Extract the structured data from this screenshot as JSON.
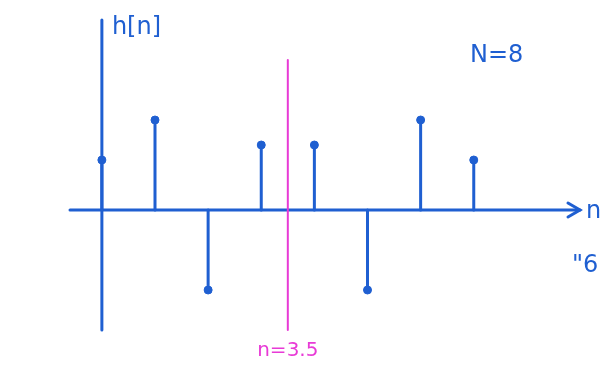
{
  "chart_data": {
    "type": "stem",
    "y_label": "h[n]",
    "x_label": "n",
    "x": [
      0,
      1,
      2,
      3,
      4,
      5,
      6,
      7
    ],
    "values": [
      0.5,
      0.9,
      -0.8,
      0.65,
      0.65,
      -0.8,
      0.9,
      0.5
    ],
    "color": "#1f5fd1",
    "marker": "circle",
    "xlim": [
      -0.6,
      9
    ],
    "ylim": [
      -1.2,
      1.9
    ],
    "xticks": [],
    "yticks": [],
    "tick_labels": false,
    "grid": false,
    "annotations": [
      {
        "text": "N=8"
      },
      {
        "text": "\"6"
      }
    ],
    "vline": {
      "x": 3.5,
      "label": "n=3.5",
      "color": "#e83ad6"
    }
  }
}
